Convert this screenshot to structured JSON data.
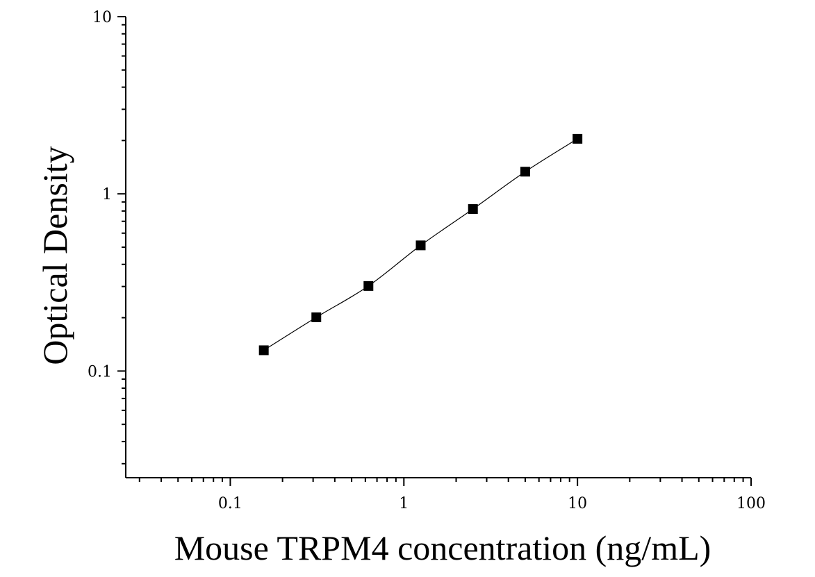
{
  "chart_data": {
    "type": "scatter",
    "title": "",
    "xlabel": "Mouse TRPM4 concentration (ng/mL)",
    "ylabel": "Optical Density",
    "x_scale": "log",
    "y_scale": "log",
    "xlim": [
      0.025,
      100
    ],
    "ylim": [
      0.025,
      10
    ],
    "x_ticks": [
      {
        "value": 0.1,
        "label": "0.1"
      },
      {
        "value": 1,
        "label": "1"
      },
      {
        "value": 10,
        "label": "10"
      },
      {
        "value": 100,
        "label": "100"
      }
    ],
    "y_ticks": [
      {
        "value": 0.1,
        "label": "0.1"
      },
      {
        "value": 1,
        "label": "1"
      },
      {
        "value": 10,
        "label": "10"
      }
    ],
    "grid": false,
    "legend": "none",
    "series": [
      {
        "x": [
          0.156,
          0.313,
          0.625,
          1.25,
          2.5,
          5,
          10
        ],
        "y": [
          0.131,
          0.201,
          0.302,
          0.512,
          0.821,
          1.334,
          2.045
        ],
        "marker": "square",
        "fit_line": true
      }
    ],
    "colors": {
      "marker": "#000000",
      "line": "#000000",
      "axis": "#000000"
    }
  }
}
